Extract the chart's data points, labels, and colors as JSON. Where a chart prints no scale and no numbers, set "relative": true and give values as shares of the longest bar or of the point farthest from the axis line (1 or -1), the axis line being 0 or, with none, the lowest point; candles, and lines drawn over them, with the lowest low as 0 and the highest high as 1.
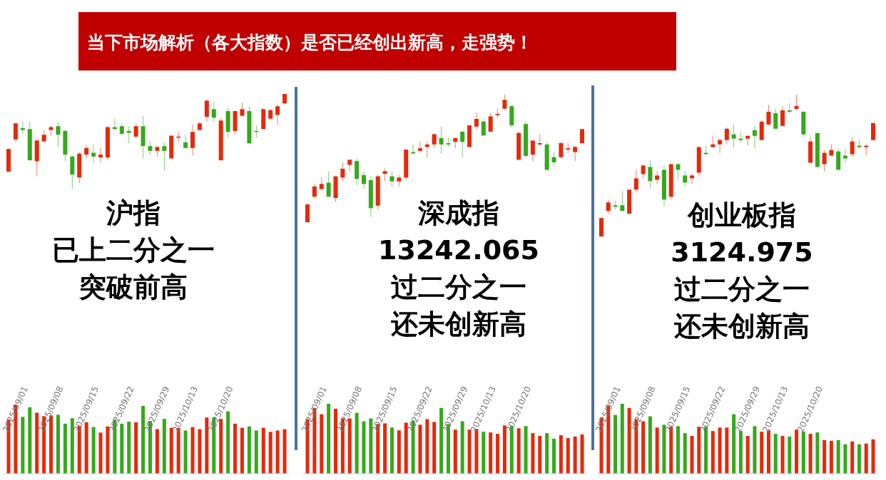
{
  "chart_data": [
    {
      "type": "other",
      "title": "当下市场解析（各大指数）是否已经创出新高，走强势！"
    },
    {
      "type": "candlestick",
      "relative": true,
      "categories": [
        null,
        null,
        null,
        null,
        null,
        null,
        null,
        null,
        null,
        null,
        null,
        null,
        null,
        null,
        null,
        null,
        null,
        null,
        null,
        null,
        null,
        null,
        null,
        null,
        null,
        null,
        null,
        null,
        null,
        null,
        null,
        null,
        null,
        null,
        null,
        null,
        null,
        null,
        null,
        null
      ],
      "ohlc": [
        [
          0.18,
          0.42,
          0.18,
          0.42
        ],
        [
          0.52,
          0.69,
          0.49,
          0.69
        ],
        [
          0.64,
          0.71,
          0.58,
          0.62
        ],
        [
          0.63,
          0.71,
          0.3,
          0.3
        ],
        [
          0.29,
          0.51,
          0.13,
          0.51
        ],
        [
          0.5,
          0.62,
          0.49,
          0.57
        ],
        [
          0.62,
          0.67,
          0.56,
          0.65
        ],
        [
          0.66,
          0.7,
          0.44,
          0.57
        ],
        [
          0.61,
          0.63,
          0.29,
          0.36
        ],
        [
          0.34,
          0.35,
          0,
          0.15
        ],
        [
          0.12,
          0.39,
          0.06,
          0.37
        ],
        [
          0.36,
          0.46,
          0.32,
          0.43
        ],
        [
          0.38,
          0.47,
          0.27,
          0.34
        ],
        [
          0.33,
          0.43,
          0.28,
          0.36
        ],
        [
          0.33,
          0.66,
          0.3,
          0.65
        ],
        [
          0.65,
          0.74,
          0.62,
          0.63
        ],
        [
          0.66,
          0.68,
          0.57,
          0.58
        ],
        [
          0.61,
          0.66,
          0.48,
          0.59
        ],
        [
          0.55,
          0.69,
          0.53,
          0.66
        ],
        [
          0.66,
          0.77,
          0.32,
          0.45
        ],
        [
          0.45,
          0.5,
          0.36,
          0.4
        ],
        [
          0.4,
          0.45,
          0.34,
          0.44
        ],
        [
          0.45,
          0.49,
          0.19,
          0.4
        ],
        [
          0.32,
          0.56,
          0.32,
          0.56
        ],
        [
          0.54,
          0.61,
          0.49,
          0.55
        ],
        [
          0.49,
          0.57,
          0.43,
          0.43
        ],
        [
          0.43,
          0.68,
          0.35,
          0.6
        ],
        [
          0.62,
          0.71,
          0.61,
          0.69
        ],
        [
          0.76,
          0.94,
          0.71,
          0.93
        ],
        [
          0.84,
          0.92,
          0.71,
          0.75
        ],
        [
          0.3,
          0.75,
          0.3,
          0.72
        ],
        [
          0.82,
          0.85,
          0.54,
          0.6
        ],
        [
          0.61,
          0.82,
          0.57,
          0.82
        ],
        [
          0.77,
          0.91,
          0.76,
          0.84
        ],
        [
          0.82,
          0.87,
          0.47,
          0.48
        ],
        [
          0.61,
          0.67,
          0.54,
          0.6
        ],
        [
          0.63,
          0.85,
          0.63,
          0.84
        ],
        [
          0.74,
          0.84,
          0.73,
          0.83
        ],
        [
          0.78,
          0.89,
          0.67,
          0.87
        ],
        [
          0.9,
          1,
          0.9,
          1
        ]
      ],
      "colors": [
        "#e5290b",
        "#e5290b",
        "#35a91c",
        "#35a91c",
        "#e5290b",
        "#e5290b",
        "#e5290b",
        "#35a91c",
        "#35a91c",
        "#35a91c",
        "#e5290b",
        "#e5290b",
        "#35a91c",
        "#e5290b",
        "#e5290b",
        "#35a91c",
        "#35a91c",
        "#35a91c",
        "#e5290b",
        "#35a91c",
        "#35a91c",
        "#e5290b",
        "#35a91c",
        "#e5290b",
        "#e5290b",
        "#35a91c",
        "#e5290b",
        "#e5290b",
        "#e5290b",
        "#35a91c",
        "#e5290b",
        "#35a91c",
        "#e5290b",
        "#e5290b",
        "#35a91c",
        "#35a91c",
        "#e5290b",
        "#e5290b",
        "#e5290b",
        "#e5290b"
      ],
      "annotations": [
        "沪指",
        "已上二分之一",
        "突破前高"
      ]
    },
    {
      "type": "bar",
      "relative": true,
      "tick_labels": "x",
      "categories": [
        null,
        "2025/09/01",
        null,
        null,
        null,
        null,
        "2025/09/08",
        null,
        null,
        null,
        null,
        "2025/09/15",
        null,
        null,
        null,
        null,
        "2025/09/22",
        null,
        null,
        null,
        null,
        "2025/09/29",
        null,
        null,
        null,
        "2025/10/13",
        null,
        null,
        null,
        null,
        "2025/10/20",
        null,
        null,
        null,
        null,
        null,
        null,
        null,
        null,
        null
      ],
      "values": [
        0.79,
        1,
        0.83,
        0.97,
        0.89,
        0.84,
        0.85,
        0.86,
        0.73,
        0.81,
        0.7,
        0.75,
        0.68,
        0.6,
        0.69,
        0.79,
        0.73,
        0.76,
        0.75,
        0.99,
        0.77,
        0.65,
        0.8,
        0.67,
        0.67,
        0.63,
        0.68,
        0.65,
        0.82,
        0.82,
        0.8,
        0.91,
        0.73,
        0.67,
        0.69,
        0.63,
        0.67,
        0.61,
        0.63,
        0.65
      ],
      "colors": [
        "#e5290b",
        "#e5290b",
        "#35a91c",
        "#35a91c",
        "#e5290b",
        "#e5290b",
        "#e5290b",
        "#35a91c",
        "#35a91c",
        "#35a91c",
        "#e5290b",
        "#e5290b",
        "#35a91c",
        "#e5290b",
        "#e5290b",
        "#35a91c",
        "#35a91c",
        "#35a91c",
        "#e5290b",
        "#35a91c",
        "#35a91c",
        "#e5290b",
        "#35a91c",
        "#e5290b",
        "#e5290b",
        "#35a91c",
        "#e5290b",
        "#e5290b",
        "#e5290b",
        "#35a91c",
        "#e5290b",
        "#35a91c",
        "#e5290b",
        "#e5290b",
        "#35a91c",
        "#35a91c",
        "#e5290b",
        "#e5290b",
        "#e5290b",
        "#e5290b"
      ]
    },
    {
      "type": "candlestick",
      "relative": true,
      "categories": [
        null,
        null,
        null,
        null,
        null,
        null,
        null,
        null,
        null,
        null,
        null,
        null,
        null,
        null,
        null,
        null,
        null,
        null,
        null,
        null,
        null,
        null,
        null,
        null,
        null,
        null,
        null,
        null,
        null,
        null,
        null,
        null,
        null,
        null,
        null,
        null,
        null,
        null,
        null,
        null
      ],
      "ohlc": [
        [
          0,
          0.14,
          0,
          0.14
        ],
        [
          0.2,
          0.3,
          0.19,
          0.28
        ],
        [
          0.26,
          0.35,
          0.25,
          0.3
        ],
        [
          0.31,
          0.4,
          0.2,
          0.2
        ],
        [
          0.19,
          0.36,
          0.16,
          0.36
        ],
        [
          0.35,
          0.47,
          0.32,
          0.42
        ],
        [
          0.45,
          0.49,
          0.4,
          0.49
        ],
        [
          0.48,
          0.5,
          0.29,
          0.34
        ],
        [
          0.37,
          0.4,
          0.26,
          0.3
        ],
        [
          0.33,
          0.36,
          0.04,
          0.11
        ],
        [
          0.13,
          0.37,
          0.1,
          0.36
        ],
        [
          0.38,
          0.42,
          0.32,
          0.4
        ],
        [
          0.36,
          0.4,
          0.28,
          0.32
        ],
        [
          0.32,
          0.37,
          0.28,
          0.35
        ],
        [
          0.35,
          0.57,
          0.33,
          0.57
        ],
        [
          0.55,
          0.61,
          0.53,
          0.54
        ],
        [
          0.56,
          0.63,
          0.55,
          0.58
        ],
        [
          0.59,
          0.63,
          0.51,
          0.61
        ],
        [
          0.61,
          0.7,
          0.58,
          0.69
        ],
        [
          0.66,
          0.75,
          0.54,
          0.61
        ],
        [
          0.62,
          0.67,
          0.59,
          0.61
        ],
        [
          0.63,
          0.66,
          0.58,
          0.66
        ],
        [
          0.71,
          0.72,
          0.51,
          0.63
        ],
        [
          0.59,
          0.76,
          0.59,
          0.76
        ],
        [
          0.75,
          0.86,
          0.73,
          0.81
        ],
        [
          0.79,
          0.81,
          0.68,
          0.68
        ],
        [
          0.71,
          0.86,
          0.71,
          0.83
        ],
        [
          0.84,
          0.89,
          0.82,
          0.85
        ],
        [
          0.89,
          1,
          0.88,
          0.96
        ],
        [
          0.91,
          0.92,
          0.74,
          0.76
        ],
        [
          0.49,
          0.71,
          0.49,
          0.7
        ],
        [
          0.77,
          0.79,
          0.5,
          0.52
        ],
        [
          0.53,
          0.64,
          0.48,
          0.64
        ],
        [
          0.61,
          0.69,
          0.6,
          0.62
        ],
        [
          0.61,
          0.63,
          0.41,
          0.41
        ],
        [
          0.51,
          0.55,
          0.44,
          0.47
        ],
        [
          0.51,
          0.63,
          0.5,
          0.62
        ],
        [
          0.57,
          0.62,
          0.54,
          0.58
        ],
        [
          0.55,
          0.6,
          0.48,
          0.59
        ],
        [
          0.62,
          0.73,
          0.62,
          0.73
        ]
      ],
      "colors": [
        "#e5290b",
        "#e5290b",
        "#e5290b",
        "#35a91c",
        "#e5290b",
        "#e5290b",
        "#e5290b",
        "#35a91c",
        "#35a91c",
        "#35a91c",
        "#e5290b",
        "#e5290b",
        "#35a91c",
        "#e5290b",
        "#e5290b",
        "#35a91c",
        "#e5290b",
        "#e5290b",
        "#e5290b",
        "#35a91c",
        "#35a91c",
        "#e5290b",
        "#35a91c",
        "#e5290b",
        "#e5290b",
        "#35a91c",
        "#e5290b",
        "#e5290b",
        "#e5290b",
        "#35a91c",
        "#e5290b",
        "#35a91c",
        "#e5290b",
        "#e5290b",
        "#35a91c",
        "#35a91c",
        "#e5290b",
        "#e5290b",
        "#e5290b",
        "#e5290b"
      ],
      "annotations": [
        "深成指",
        "13242.065",
        "过二分之一",
        "还未创新高"
      ]
    },
    {
      "type": "bar",
      "relative": true,
      "tick_labels": "x",
      "categories": [
        null,
        "2025/09/01",
        null,
        null,
        null,
        null,
        "2025/09/08",
        null,
        null,
        null,
        null,
        "2025/09/15",
        null,
        null,
        null,
        null,
        "2025/09/22",
        null,
        null,
        null,
        null,
        "2025/09/29",
        null,
        null,
        null,
        "2025/10/13",
        null,
        null,
        null,
        null,
        "2025/10/20",
        null,
        null,
        null,
        null,
        null,
        null,
        null,
        null,
        null
      ],
      "values": [
        0.78,
        0.94,
        0.85,
        1,
        0.93,
        0.79,
        0.79,
        0.87,
        0.75,
        0.79,
        0.71,
        0.72,
        0.66,
        0.62,
        0.73,
        0.76,
        0.7,
        0.78,
        0.74,
        0.94,
        0.71,
        0.63,
        0.75,
        0.63,
        0.64,
        0.6,
        0.59,
        0.57,
        0.69,
        0.68,
        0.65,
        0.68,
        0.58,
        0.54,
        0.58,
        0.5,
        0.55,
        0.51,
        0.53,
        0.56
      ],
      "colors": [
        "#e5290b",
        "#e5290b",
        "#e5290b",
        "#35a91c",
        "#e5290b",
        "#e5290b",
        "#e5290b",
        "#35a91c",
        "#35a91c",
        "#35a91c",
        "#e5290b",
        "#e5290b",
        "#35a91c",
        "#e5290b",
        "#e5290b",
        "#35a91c",
        "#e5290b",
        "#e5290b",
        "#e5290b",
        "#35a91c",
        "#35a91c",
        "#e5290b",
        "#35a91c",
        "#e5290b",
        "#e5290b",
        "#35a91c",
        "#e5290b",
        "#e5290b",
        "#e5290b",
        "#35a91c",
        "#e5290b",
        "#35a91c",
        "#e5290b",
        "#e5290b",
        "#35a91c",
        "#35a91c",
        "#e5290b",
        "#e5290b",
        "#e5290b",
        "#e5290b"
      ]
    },
    {
      "type": "candlestick",
      "relative": true,
      "categories": [
        null,
        null,
        null,
        null,
        null,
        null,
        null,
        null,
        null,
        null,
        null,
        null,
        null,
        null,
        null,
        null,
        null,
        null,
        null,
        null,
        null,
        null,
        null,
        null,
        null,
        null,
        null,
        null,
        null,
        null,
        null,
        null,
        null,
        null,
        null,
        null,
        null,
        null,
        null,
        null
      ],
      "ohlc": [
        [
          0,
          0.13,
          0,
          0.13
        ],
        [
          0.18,
          0.26,
          0.16,
          0.24
        ],
        [
          0.22,
          0.25,
          0.19,
          0.21
        ],
        [
          0.22,
          0.32,
          0.18,
          0.18
        ],
        [
          0.16,
          0.33,
          0.16,
          0.33
        ],
        [
          0.33,
          0.47,
          0.31,
          0.41
        ],
        [
          0.44,
          0.51,
          0.41,
          0.5
        ],
        [
          0.49,
          0.54,
          0.34,
          0.39
        ],
        [
          0.4,
          0.46,
          0.37,
          0.43
        ],
        [
          0.47,
          0.5,
          0.21,
          0.26
        ],
        [
          0.28,
          0.51,
          0.26,
          0.51
        ],
        [
          0.51,
          0.52,
          0.4,
          0.47
        ],
        [
          0.43,
          0.46,
          0.35,
          0.38
        ],
        [
          0.41,
          0.44,
          0.37,
          0.43
        ],
        [
          0.45,
          0.64,
          0.43,
          0.63
        ],
        [
          0.59,
          0.64,
          0.58,
          0.58
        ],
        [
          0.63,
          0.71,
          0.63,
          0.65
        ],
        [
          0.65,
          0.69,
          0.59,
          0.68
        ],
        [
          0.68,
          0.77,
          0.65,
          0.76
        ],
        [
          0.72,
          0.79,
          0.63,
          0.69
        ],
        [
          0.69,
          0.74,
          0.66,
          0.68
        ],
        [
          0.69,
          0.71,
          0.64,
          0.71
        ],
        [
          0.75,
          0.78,
          0.62,
          0.71
        ],
        [
          0.68,
          0.82,
          0.68,
          0.81
        ],
        [
          0.79,
          0.93,
          0.78,
          0.88
        ],
        [
          0.87,
          0.9,
          0.76,
          0.76
        ],
        [
          0.78,
          0.92,
          0.78,
          0.89
        ],
        [
          0.89,
          0.94,
          0.87,
          0.88
        ],
        [
          0.9,
          1,
          0.89,
          0.92
        ],
        [
          0.88,
          0.88,
          0.7,
          0.72
        ],
        [
          0.52,
          0.7,
          0.52,
          0.67
        ],
        [
          0.73,
          0.73,
          0.49,
          0.49
        ],
        [
          0.51,
          0.61,
          0.46,
          0.59
        ],
        [
          0.57,
          0.65,
          0.57,
          0.61
        ],
        [
          0.6,
          0.62,
          0.47,
          0.47
        ],
        [
          0.57,
          0.62,
          0.52,
          0.55
        ],
        [
          0.58,
          0.7,
          0.56,
          0.67
        ],
        [
          0.64,
          0.68,
          0.62,
          0.63
        ],
        [
          0.63,
          0.65,
          0.57,
          0.64
        ],
        [
          0.68,
          0.8,
          0.68,
          0.8
        ]
      ],
      "colors": [
        "#e5290b",
        "#e5290b",
        "#35a91c",
        "#35a91c",
        "#e5290b",
        "#e5290b",
        "#e5290b",
        "#35a91c",
        "#e5290b",
        "#35a91c",
        "#e5290b",
        "#35a91c",
        "#35a91c",
        "#e5290b",
        "#e5290b",
        "#35a91c",
        "#e5290b",
        "#e5290b",
        "#e5290b",
        "#35a91c",
        "#35a91c",
        "#e5290b",
        "#35a91c",
        "#e5290b",
        "#e5290b",
        "#35a91c",
        "#e5290b",
        "#35a91c",
        "#e5290b",
        "#35a91c",
        "#e5290b",
        "#35a91c",
        "#e5290b",
        "#e5290b",
        "#35a91c",
        "#35a91c",
        "#e5290b",
        "#35a91c",
        "#e5290b",
        "#e5290b"
      ],
      "annotations": [
        "创业板指",
        "3124.975",
        "过二分之一",
        "还未创新高"
      ]
    },
    {
      "type": "bar",
      "relative": true,
      "tick_labels": "x",
      "categories": [
        null,
        "2025/09/01",
        null,
        null,
        null,
        null,
        "2025/09/08",
        null,
        null,
        null,
        null,
        "2025/09/15",
        null,
        null,
        null,
        null,
        "2025/09/22",
        null,
        null,
        null,
        null,
        "2025/09/29",
        null,
        null,
        null,
        "2025/10/13",
        null,
        null,
        null,
        null,
        "2025/10/20",
        null,
        null,
        null,
        null,
        null,
        null,
        null,
        null,
        null
      ],
      "values": [
        0.8,
        0.97,
        0.84,
        1,
        0.94,
        0.78,
        0.75,
        0.82,
        0.66,
        0.7,
        0.67,
        0.68,
        0.58,
        0.54,
        0.67,
        0.67,
        0.61,
        0.66,
        0.66,
        0.85,
        0.61,
        0.54,
        0.68,
        0.6,
        0.62,
        0.57,
        0.54,
        0.53,
        0.63,
        0.6,
        0.57,
        0.59,
        0.48,
        0.47,
        0.48,
        0.42,
        0.46,
        0.42,
        0.43,
        0.49
      ],
      "colors": [
        "#e5290b",
        "#e5290b",
        "#35a91c",
        "#35a91c",
        "#e5290b",
        "#e5290b",
        "#e5290b",
        "#35a91c",
        "#e5290b",
        "#35a91c",
        "#e5290b",
        "#35a91c",
        "#35a91c",
        "#e5290b",
        "#e5290b",
        "#35a91c",
        "#e5290b",
        "#e5290b",
        "#e5290b",
        "#35a91c",
        "#35a91c",
        "#e5290b",
        "#35a91c",
        "#e5290b",
        "#e5290b",
        "#35a91c",
        "#e5290b",
        "#35a91c",
        "#e5290b",
        "#35a91c",
        "#e5290b",
        "#35a91c",
        "#e5290b",
        "#e5290b",
        "#35a91c",
        "#35a91c",
        "#e5290b",
        "#35a91c",
        "#e5290b",
        "#e5290b"
      ]
    }
  ]
}
